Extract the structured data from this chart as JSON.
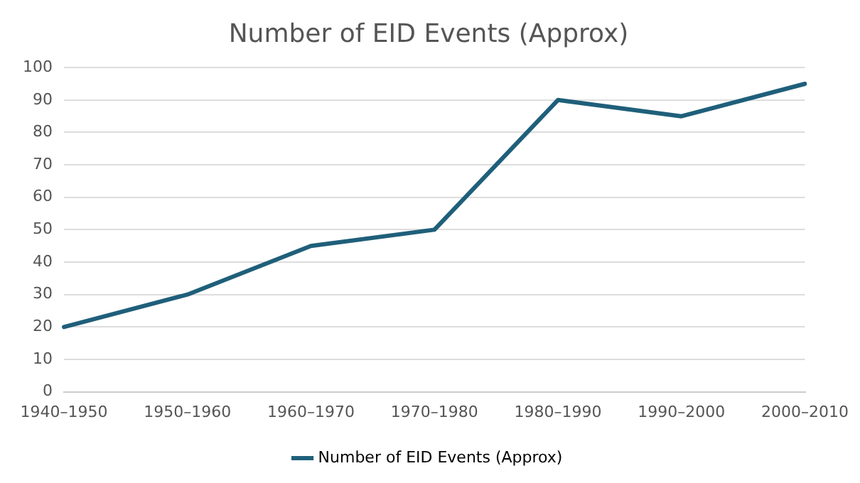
{
  "chart_data": {
    "type": "line",
    "title": "Number of EID Events (Approx)",
    "categories": [
      "1940–1950",
      "1950–1960",
      "1960–1970",
      "1970–1980",
      "1980–1990",
      "1990–2000",
      "2000–2010"
    ],
    "series": [
      {
        "name": "Number of EID Events (Approx)",
        "color": "#1f5f7a",
        "values": [
          20,
          30,
          45,
          50,
          90,
          85,
          95
        ]
      }
    ],
    "ylim": [
      0,
      100
    ],
    "yticks": [
      0,
      10,
      20,
      30,
      40,
      50,
      60,
      70,
      80,
      90,
      100
    ],
    "grid": "y",
    "legend": "bottom",
    "marker": "none",
    "line_style": "solid"
  }
}
